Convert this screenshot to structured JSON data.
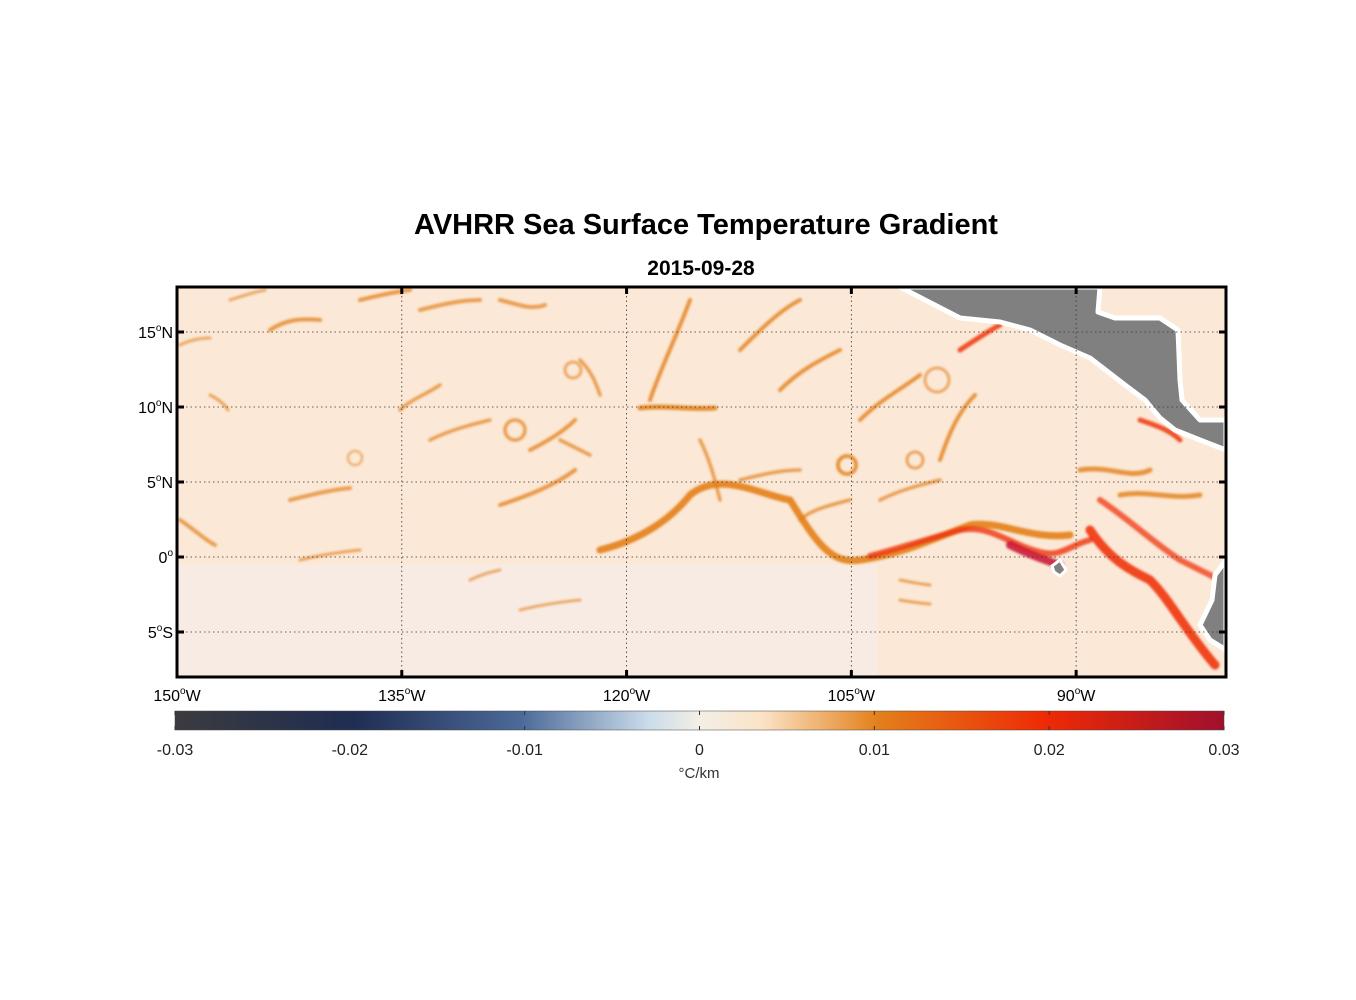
{
  "title": "AVHRR Sea Surface Temperature Gradient",
  "subtitle": "2015-09-28",
  "colors": {
    "land": "#808080",
    "ocean_background": "#fbe8d6",
    "coast_halo": "#ffffff"
  },
  "map": {
    "lon_range": [
      -150,
      -80
    ],
    "lat_range": [
      -8,
      18
    ],
    "lon_ticks": [
      {
        "value": -150,
        "num": "150",
        "hemi": "W"
      },
      {
        "value": -135,
        "num": "135",
        "hemi": "W"
      },
      {
        "value": -120,
        "num": "120",
        "hemi": "W"
      },
      {
        "value": -105,
        "num": "105",
        "hemi": "W"
      },
      {
        "value": -90,
        "num": "90",
        "hemi": "W"
      }
    ],
    "lat_ticks": [
      {
        "value": 15,
        "num": "15",
        "hemi": "N"
      },
      {
        "value": 10,
        "num": "10",
        "hemi": "N"
      },
      {
        "value": 5,
        "num": "5",
        "hemi": "N"
      },
      {
        "value": 0,
        "num": "0",
        "hemi": ""
      },
      {
        "value": -5,
        "num": "5",
        "hemi": "S"
      }
    ],
    "degree_symbol": "o",
    "grid": "dotted"
  },
  "colorbar": {
    "min": -0.03,
    "max": 0.03,
    "ticks": [
      "-0.03",
      "-0.02",
      "-0.01",
      "0",
      "0.01",
      "0.02",
      "0.03"
    ],
    "tick_values": [
      -0.03,
      -0.02,
      -0.01,
      0,
      0.01,
      0.02,
      0.03
    ],
    "unit_label": "°C/km",
    "colormap": [
      "#3b3b3f",
      "#1f2d52",
      "#4c6a99",
      "#c9dbe9",
      "#fbe8d6",
      "#e3801a",
      "#ee2a05",
      "#a0102d"
    ]
  }
}
